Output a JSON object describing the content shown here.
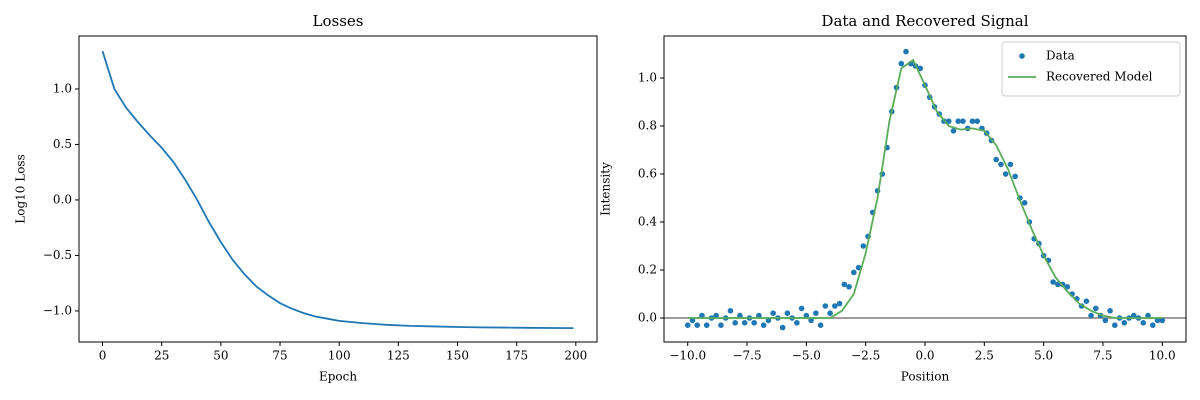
{
  "chart_data": [
    {
      "type": "line",
      "title": "Losses",
      "xlabel": "Epoch",
      "ylabel": "Log10 Loss",
      "x": [
        0,
        5,
        10,
        15,
        20,
        25,
        30,
        35,
        40,
        45,
        50,
        55,
        60,
        65,
        70,
        75,
        80,
        85,
        90,
        95,
        100,
        110,
        120,
        130,
        140,
        150,
        160,
        170,
        180,
        190,
        199
      ],
      "series": [
        {
          "color": "#1f77b4",
          "values": [
            1.34,
            1.0,
            0.83,
            0.7,
            0.58,
            0.47,
            0.34,
            0.18,
            0.0,
            -0.2,
            -0.38,
            -0.54,
            -0.67,
            -0.78,
            -0.86,
            -0.93,
            -0.98,
            -1.02,
            -1.05,
            -1.07,
            -1.09,
            -1.11,
            -1.125,
            -1.135,
            -1.14,
            -1.145,
            -1.148,
            -1.15,
            -1.152,
            -1.154,
            -1.155
          ]
        }
      ],
      "xlim": [
        -9.95,
        208.95
      ],
      "xticks": [
        0,
        25,
        50,
        75,
        100,
        125,
        150,
        175,
        200
      ],
      "ylim": [
        -1.28,
        1.477
      ],
      "yticks": [
        {
          "value": -1.0,
          "label": "−1.0"
        },
        {
          "value": -0.5,
          "label": "−0.5"
        },
        {
          "value": 0,
          "label": "0.0"
        },
        {
          "value": 0.5,
          "label": "0.5"
        },
        {
          "value": 1.0,
          "label": "1.0"
        }
      ]
    },
    {
      "type": "scatter",
      "title": "Data and Recovered Signal",
      "xlabel": "Position",
      "ylabel": "Intensity",
      "legend": "upper right",
      "hlines": [
        {
          "y": 0,
          "color": "#7f7f7f"
        }
      ],
      "series": [
        {
          "name": "Data",
          "kind": "scatter",
          "color": "#1f77b4",
          "x": [
            -10,
            -9.8,
            -9.6,
            -9.4,
            -9.2,
            -9,
            -8.8,
            -8.6,
            -8.4,
            -8.2,
            -8,
            -7.8,
            -7.6,
            -7.4,
            -7.2,
            -7,
            -6.8,
            -6.6,
            -6.4,
            -6.2,
            -6,
            -5.8,
            -5.6,
            -5.4,
            -5.2,
            -5,
            -4.8,
            -4.6,
            -4.4,
            -4.2,
            -4,
            -3.8,
            -3.6,
            -3.4,
            -3.2,
            -3,
            -2.8,
            -2.6,
            -2.4,
            -2.2,
            -2,
            -1.8,
            -1.6,
            -1.4,
            -1.2,
            -1,
            -0.8,
            -0.6,
            -0.4,
            -0.2,
            0,
            0.2,
            0.4,
            0.6,
            0.8,
            1,
            1.2,
            1.4,
            1.6,
            1.8,
            2,
            2.2,
            2.4,
            2.6,
            2.8,
            3,
            3.2,
            3.4,
            3.6,
            3.8,
            4,
            4.2,
            4.4,
            4.6,
            4.8,
            5,
            5.2,
            5.4,
            5.6,
            5.8,
            6,
            6.2,
            6.4,
            6.6,
            6.8,
            7,
            7.2,
            7.4,
            7.6,
            7.8,
            8,
            8.2,
            8.4,
            8.6,
            8.8,
            9,
            9.2,
            9.4,
            9.6,
            9.8,
            10
          ],
          "values": [
            -0.03,
            -0.01,
            -0.03,
            0.01,
            -0.03,
            0,
            0.01,
            -0.03,
            0,
            0.03,
            -0.02,
            0.01,
            -0.02,
            0,
            -0.02,
            0.01,
            -0.03,
            -0.01,
            0.02,
            0,
            -0.04,
            0.02,
            0,
            -0.02,
            0.04,
            0.01,
            -0.01,
            0.02,
            -0.03,
            0.05,
            0.02,
            0.05,
            0.06,
            0.14,
            0.13,
            0.19,
            0.21,
            0.3,
            0.34,
            0.44,
            0.53,
            0.6,
            0.71,
            0.86,
            0.96,
            1.06,
            1.11,
            1.06,
            1.05,
            1.04,
            0.97,
            0.92,
            0.88,
            0.85,
            0.82,
            0.82,
            0.78,
            0.82,
            0.82,
            0.79,
            0.82,
            0.82,
            0.79,
            0.77,
            0.74,
            0.66,
            0.64,
            0.6,
            0.64,
            0.59,
            0.5,
            0.48,
            0.4,
            0.33,
            0.31,
            0.26,
            0.24,
            0.15,
            0.14,
            0.14,
            0.13,
            0.1,
            0.08,
            0.05,
            0.07,
            0.01,
            0.04,
            0.01,
            -0.01,
            0.03,
            -0.03,
            0,
            -0.02,
            0,
            0.01,
            0,
            -0.02,
            0.01,
            -0.03,
            -0.01,
            -0.01
          ]
        },
        {
          "name": "Recovered Model",
          "kind": "line",
          "color": "#5aac5a",
          "x": [
            -10,
            -9.5,
            -9,
            -8.5,
            -8,
            -7.5,
            -7,
            -6.5,
            -6,
            -5.5,
            -5,
            -4.5,
            -4,
            -3.5,
            -3,
            -2.5,
            -2,
            -1.5,
            -1,
            -0.5,
            0,
            0.5,
            1,
            1.5,
            2,
            2.5,
            3,
            3.5,
            4,
            4.5,
            5,
            5.5,
            6,
            6.5,
            7,
            7.5,
            8,
            8.5,
            9,
            9.5,
            10
          ],
          "values": [
            0,
            0,
            0,
            0,
            0,
            0,
            0,
            0,
            0,
            0,
            0,
            0,
            0,
            0.03,
            0.1,
            0.27,
            0.5,
            0.82,
            1.04,
            1.075,
            0.97,
            0.86,
            0.8,
            0.785,
            0.79,
            0.78,
            0.72,
            0.62,
            0.49,
            0.37,
            0.26,
            0.17,
            0.11,
            0.06,
            0.03,
            0.01,
            0,
            0,
            0,
            0,
            0
          ]
        }
      ],
      "xlim": [
        -11,
        11
      ],
      "xticks": [
        {
          "value": -10,
          "label": "−10.0"
        },
        {
          "value": -7.5,
          "label": "−7.5"
        },
        {
          "value": -5,
          "label": "−5.0"
        },
        {
          "value": -2.5,
          "label": "−2.5"
        },
        {
          "value": 0,
          "label": "0.0"
        },
        {
          "value": 2.5,
          "label": "2.5"
        },
        {
          "value": 5,
          "label": "5.0"
        },
        {
          "value": 7.5,
          "label": "7.5"
        },
        {
          "value": 10,
          "label": "10.0"
        }
      ],
      "ylim": [
        -0.1,
        1.175
      ],
      "yticks": [
        {
          "value": 0,
          "label": "0.0"
        },
        {
          "value": 0.2,
          "label": "0.2"
        },
        {
          "value": 0.4,
          "label": "0.4"
        },
        {
          "value": 0.6,
          "label": "0.6"
        },
        {
          "value": 0.8,
          "label": "0.8"
        },
        {
          "value": 1.0,
          "label": "1.0"
        }
      ]
    }
  ]
}
